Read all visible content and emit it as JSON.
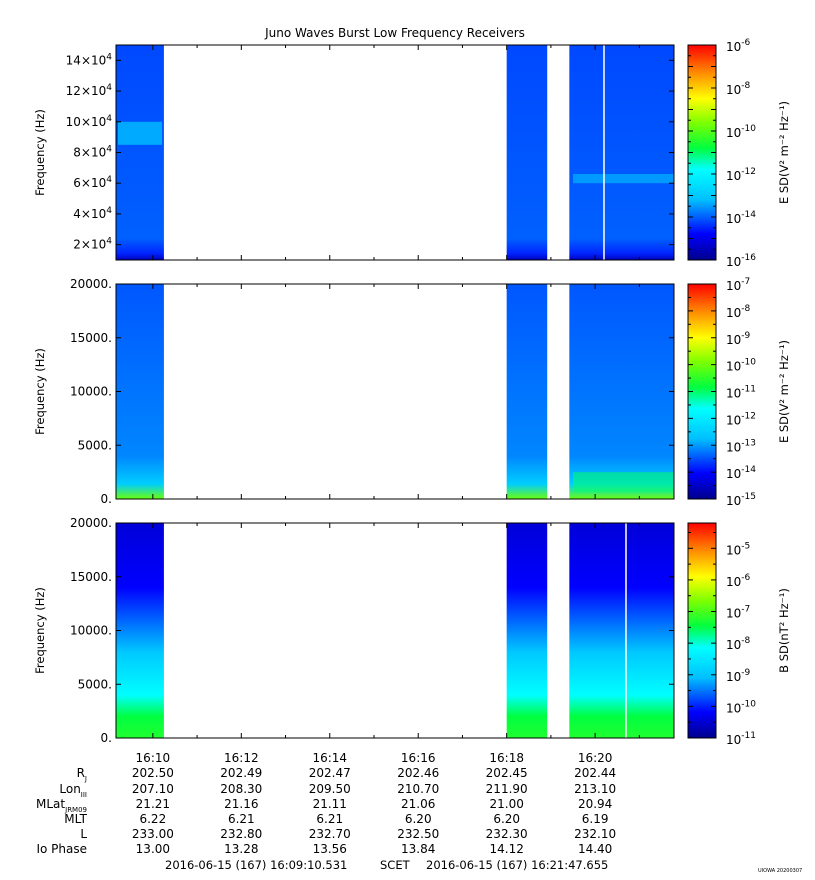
{
  "title": "Juno Waves Burst Low Frequency Receivers",
  "footer": {
    "start": "2016-06-15 (167) 16:09:10.531",
    "scet": "SCET",
    "end": "2016-06-15 (167) 16:21:47.655",
    "stamp": "UIOWA 20200307"
  },
  "chart_data": [
    {
      "type": "heatmap",
      "ylabel": "Frequency (Hz)",
      "yticks": [
        {
          "v": 20000,
          "mant": "2×10",
          "exp": "4"
        },
        {
          "v": 40000,
          "mant": "4×10",
          "exp": "4"
        },
        {
          "v": 60000,
          "mant": "6×10",
          "exp": "4"
        },
        {
          "v": 80000,
          "mant": "8×10",
          "exp": "4"
        },
        {
          "v": 100000,
          "mant": "10×10",
          "exp": "4"
        },
        {
          "v": 120000,
          "mant": "12×10",
          "exp": "4"
        },
        {
          "v": 140000,
          "mant": "14×10",
          "exp": "4"
        }
      ],
      "ylim": [
        10000,
        150000
      ],
      "colorbar": {
        "label": "E SD(V² m⁻² Hz⁻¹)",
        "scale": "log",
        "range": [
          -16,
          -6
        ],
        "ticks": [
          {
            "v": -6,
            "exp": "-6"
          },
          {
            "v": -8,
            "exp": "-8"
          },
          {
            "v": -10,
            "exp": "-10"
          },
          {
            "v": -12,
            "exp": "-12"
          },
          {
            "v": -14,
            "exp": "-14"
          },
          {
            "v": -16,
            "exp": "-16"
          }
        ]
      },
      "data_intervals": [
        "16:09:10-16:10:15",
        "16:18:00-16:18:55",
        "16:19:25-16:21:47"
      ],
      "typical_level_exp": -14,
      "features": [
        "enhancement near 90 kHz around 16:09:30",
        "drifting emission near 60-65 kHz after 16:19:30",
        "data gap line near 16:20"
      ]
    },
    {
      "type": "heatmap",
      "ylabel": "Frequency (Hz)",
      "yticks": [
        {
          "v": 0,
          "label": "0."
        },
        {
          "v": 5000,
          "label": "5000."
        },
        {
          "v": 10000,
          "label": "10000."
        },
        {
          "v": 15000,
          "label": "15000."
        },
        {
          "v": 20000,
          "label": "20000."
        }
      ],
      "ylim": [
        0,
        20000
      ],
      "colorbar": {
        "label": "E SD(V² m⁻² Hz⁻¹)",
        "scale": "log",
        "range": [
          -15,
          -7
        ],
        "ticks": [
          {
            "v": -7,
            "exp": "-7"
          },
          {
            "v": -8,
            "exp": "-8"
          },
          {
            "v": -9,
            "exp": "-9"
          },
          {
            "v": -10,
            "exp": "-10"
          },
          {
            "v": -11,
            "exp": "-11"
          },
          {
            "v": -12,
            "exp": "-12"
          },
          {
            "v": -13,
            "exp": "-13"
          },
          {
            "v": -14,
            "exp": "-14"
          },
          {
            "v": -15,
            "exp": "-15"
          }
        ]
      },
      "data_intervals": [
        "16:09:10-16:10:15",
        "16:18:00-16:18:55",
        "16:19:25-16:21:47"
      ],
      "typical_level_exp": -13.3,
      "features": [
        "low-frequency enhancement below 1 kHz",
        "bursty emissions below 3 kHz after 16:19:30"
      ]
    },
    {
      "type": "heatmap",
      "ylabel": "Frequency (Hz)",
      "yticks": [
        {
          "v": 0,
          "label": "0."
        },
        {
          "v": 5000,
          "label": "5000."
        },
        {
          "v": 10000,
          "label": "10000."
        },
        {
          "v": 15000,
          "label": "15000."
        },
        {
          "v": 20000,
          "label": "20000."
        }
      ],
      "ylim": [
        0,
        20000
      ],
      "colorbar": {
        "label": "B SD(nT² Hz⁻¹)",
        "scale": "log",
        "range": [
          -11,
          -4.2
        ],
        "ticks": [
          {
            "v": -5,
            "exp": "-5"
          },
          {
            "v": -6,
            "exp": "-6"
          },
          {
            "v": -7,
            "exp": "-7"
          },
          {
            "v": -8,
            "exp": "-8"
          },
          {
            "v": -9,
            "exp": "-9"
          },
          {
            "v": -10,
            "exp": "-10"
          },
          {
            "v": -11,
            "exp": "-11"
          }
        ]
      },
      "data_intervals": [
        "16:09:10-16:10:15",
        "16:18:00-16:18:55",
        "16:19:25-16:21:47"
      ],
      "typical_level_exp": -10.3,
      "features": [
        "level rising toward low frequencies (green below 2 kHz)",
        "data gap line near 16:20:20"
      ]
    }
  ],
  "xaxis": {
    "range": [
      "16:09:10",
      "16:21:47"
    ],
    "ticks": [
      "16:10",
      "16:12",
      "16:14",
      "16:16",
      "16:18",
      "16:20"
    ]
  },
  "ephemeris": {
    "rows": [
      {
        "label": "R",
        "sub": "J",
        "values": [
          "202.50",
          "202.49",
          "202.47",
          "202.46",
          "202.45",
          "202.44"
        ]
      },
      {
        "label": "Lon",
        "sub": "III",
        "values": [
          "207.10",
          "208.30",
          "209.50",
          "210.70",
          "211.90",
          "213.10"
        ]
      },
      {
        "label": "MLat",
        "sub": "JRM09",
        "values": [
          "21.21",
          "21.16",
          "21.11",
          "21.06",
          "21.00",
          "20.94"
        ]
      },
      {
        "label": "MLT",
        "sub": "",
        "values": [
          "6.22",
          "6.21",
          "6.21",
          "6.20",
          "6.20",
          "6.19"
        ]
      },
      {
        "label": "L",
        "sub": "",
        "values": [
          "233.00",
          "232.80",
          "232.70",
          "232.50",
          "232.30",
          "232.10"
        ]
      },
      {
        "label": "Io Phase",
        "sub": "",
        "values": [
          "13.00",
          "13.28",
          "13.56",
          "13.84",
          "14.12",
          "14.40"
        ]
      }
    ]
  }
}
